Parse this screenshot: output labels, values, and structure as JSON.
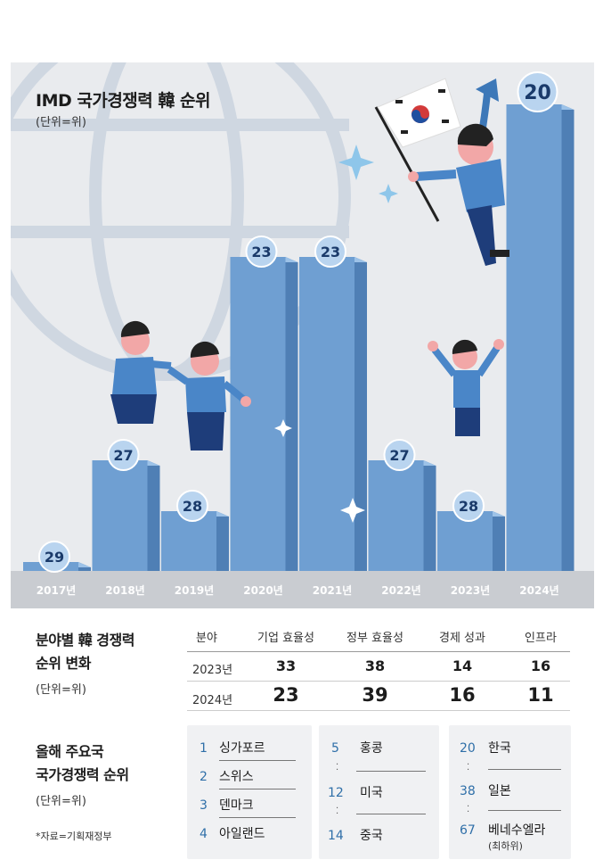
{
  "chart_data": {
    "type": "bar",
    "title": "IMD 국가경쟁력 韓 순위",
    "unit": "(단위=위)",
    "categories": [
      "2017년",
      "2018년",
      "2019년",
      "2020년",
      "2021년",
      "2022년",
      "2023년",
      "2024년"
    ],
    "values": [
      29,
      27,
      28,
      23,
      23,
      27,
      28,
      20
    ]
  },
  "colors": {
    "bar_front": "#6f9fd2",
    "bar_side": "#4f7fb5",
    "bar_top": "#9cc2e8",
    "badge": "#b9d4ef",
    "accent_blue": "#2f6fa8",
    "panel": "#e9ebee"
  },
  "field_table": {
    "title_line1": "분야별 韓 경쟁력",
    "title_line2": "순위 변화",
    "unit": "(단위=위)",
    "headers": [
      "분야",
      "기업 효율성",
      "정부 효율성",
      "경제 성과",
      "인프라"
    ],
    "rows": [
      {
        "year": "2023년",
        "values": [
          "33",
          "38",
          "14",
          "16"
        ]
      },
      {
        "year": "2024년",
        "values": [
          "23",
          "39",
          "16",
          "11"
        ]
      }
    ]
  },
  "rankings": {
    "title_line1": "올해 주요국",
    "title_line2": "국가경쟁력 순위",
    "unit": "(단위=위)",
    "source": "*자료=기획재정부",
    "col1": [
      {
        "rank": "1",
        "name": "싱가포르"
      },
      {
        "rank": "2",
        "name": "스위스"
      },
      {
        "rank": "3",
        "name": "덴마크"
      },
      {
        "rank": "4",
        "name": "아일랜드"
      }
    ],
    "col2": [
      {
        "rank": "5",
        "name": "홍콩"
      },
      {
        "rank": "12",
        "name": "미국"
      },
      {
        "rank": "14",
        "name": "중국"
      }
    ],
    "col3": [
      {
        "rank": "20",
        "name": "한국"
      },
      {
        "rank": "38",
        "name": "일본"
      },
      {
        "rank": "67",
        "name": "베네수엘라"
      }
    ],
    "col3_note": "(최하위)"
  }
}
